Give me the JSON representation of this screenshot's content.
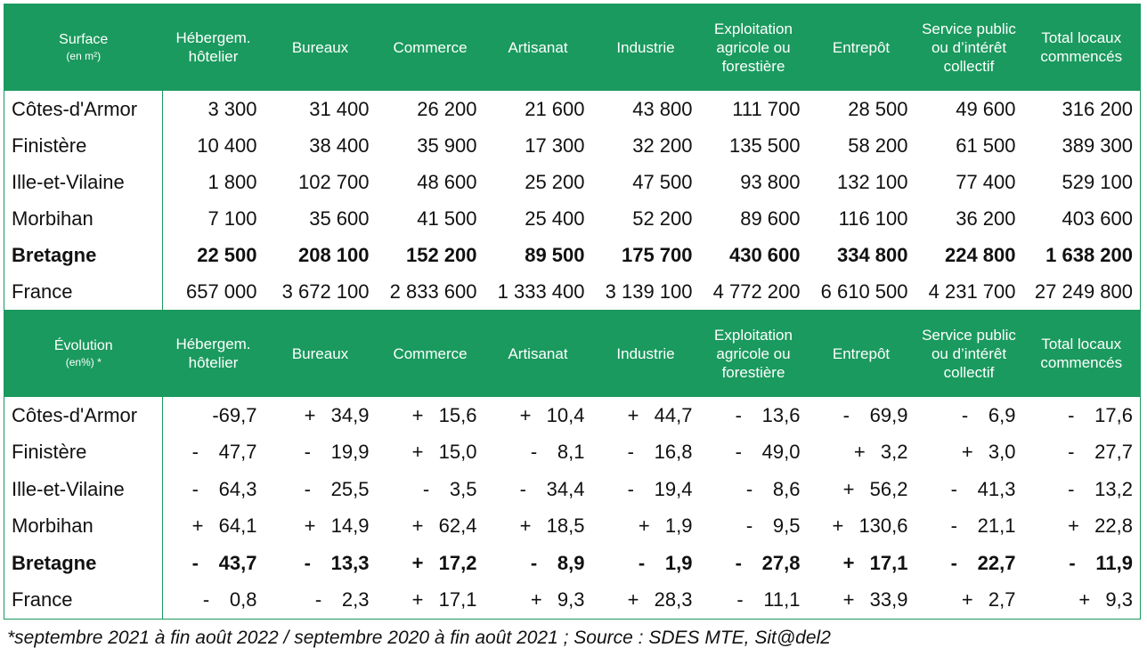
{
  "surface_header": {
    "label": "Surface",
    "unit": "(en m²)",
    "columns": [
      "Hébergem. hôtelier",
      "Bureaux",
      "Commerce",
      "Artisanat",
      "Industrie",
      "Exploitation agricole ou forestière",
      "Entrepôt",
      "Service public ou d’intérêt collectif",
      "Total locaux commencés"
    ]
  },
  "surface_rows": [
    {
      "name": "Côtes-d'Armor",
      "values": [
        "3 300",
        "31 400",
        "26 200",
        "21 600",
        "43 800",
        "111 700",
        "28 500",
        "49 600",
        "316 200"
      ]
    },
    {
      "name": "Finistère",
      "values": [
        "10 400",
        "38 400",
        "35 900",
        "17 300",
        "32 200",
        "135 500",
        "58 200",
        "61 500",
        "389 300"
      ]
    },
    {
      "name": "Ille-et-Vilaine",
      "values": [
        "1 800",
        "102 700",
        "48 600",
        "25 200",
        "47 500",
        "93 800",
        "132 100",
        "77 400",
        "529 100"
      ]
    },
    {
      "name": "Morbihan",
      "values": [
        "7 100",
        "35 600",
        "41 500",
        "25 400",
        "52 200",
        "89 600",
        "116 100",
        "36 200",
        "403 600"
      ]
    },
    {
      "name": "Bretagne",
      "values": [
        "22 500",
        "208 100",
        "152 200",
        "89 500",
        "175 700",
        "430 600",
        "334 800",
        "224 800",
        "1 638 200"
      ]
    },
    {
      "name": "France",
      "values": [
        "657 000",
        "3 672 100",
        "2 833 600",
        "1 333 400",
        "3 139 100",
        "4 772 200",
        "6 610 500",
        "4 231 700",
        "27 249 800"
      ]
    }
  ],
  "evolution_header": {
    "label": "Évolution",
    "unit": "(en%) *",
    "columns": [
      "Hébergem. hôtelier",
      "Bureaux",
      "Commerce",
      "Artisanat",
      "Industrie",
      "Exploitation agricole ou forestière",
      "Entrepôt",
      "Service public ou d’intérêt collectif",
      "Total locaux commencés"
    ]
  },
  "evolution_rows": [
    {
      "name": "Côtes-d'Armor",
      "signs": [
        "",
        "+",
        "+",
        "+",
        "+",
        "-",
        "-",
        "-",
        "-"
      ],
      "values": [
        "-69,7",
        "34,9",
        "15,6",
        "10,4",
        "44,7",
        "13,6",
        "69,9",
        "6,9",
        "17,6"
      ]
    },
    {
      "name": "Finistère",
      "signs": [
        "-",
        "-",
        "+",
        "-",
        "-",
        "-",
        "+",
        "+",
        "-"
      ],
      "values": [
        "47,7",
        "19,9",
        "15,0",
        "8,1",
        "16,8",
        "49,0",
        "3,2",
        "3,0",
        "27,7"
      ]
    },
    {
      "name": "Ille-et-Vilaine",
      "signs": [
        "-",
        "-",
        "-",
        "-",
        "-",
        "-",
        "+",
        "-",
        "-"
      ],
      "values": [
        "64,3",
        "25,5",
        "3,5",
        "34,4",
        "19,4",
        "8,6",
        "56,2",
        "41,3",
        "13,2"
      ]
    },
    {
      "name": "Morbihan",
      "signs": [
        "+",
        "+",
        "+",
        "+",
        "+",
        "-",
        "+",
        "-",
        "+"
      ],
      "values": [
        "64,1",
        "14,9",
        "62,4",
        "18,5",
        "1,9",
        "9,5",
        "130,6",
        "21,1",
        "22,8"
      ]
    },
    {
      "name": "Bretagne",
      "signs": [
        "-",
        "-",
        "+",
        "-",
        "-",
        "-",
        "+",
        "-",
        "-"
      ],
      "values": [
        "43,7",
        "13,3",
        "17,2",
        "8,9",
        "1,9",
        "27,8",
        "17,1",
        "22,7",
        "11,9"
      ]
    },
    {
      "name": "France",
      "signs": [
        "-",
        "-",
        "+",
        "+",
        "+",
        "-",
        "+",
        "+",
        "+"
      ],
      "values": [
        "0,8",
        "2,3",
        "17,1",
        "9,3",
        "28,3",
        "11,1",
        "33,9",
        "2,7",
        "9,3"
      ]
    }
  ],
  "footnote": "*septembre 2021 à fin août 2022 / septembre 2020 à fin août 2021 ; Source : SDES MTE, Sit@del2",
  "colors": {
    "header_green": "#1a9a5e"
  }
}
